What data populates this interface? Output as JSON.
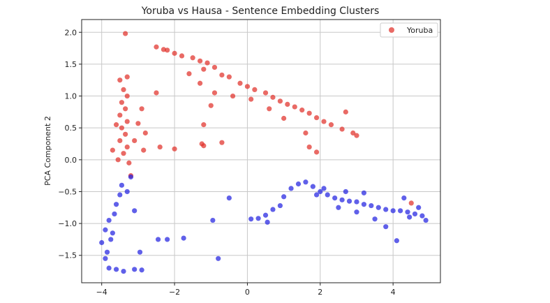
{
  "chart_data": {
    "type": "scatter",
    "title": "Yoruba vs Hausa - Sentence Embedding Clusters",
    "xlabel": "",
    "ylabel": "PCA Component 2",
    "xlim": [
      -4.55,
      5.3
    ],
    "ylim": [
      -1.93,
      2.2
    ],
    "xticks": [
      -4,
      -2,
      0,
      2,
      4
    ],
    "yticks": [
      -1.5,
      -1.0,
      -0.5,
      0.0,
      0.5,
      1.0,
      1.5,
      2.0
    ],
    "grid": true,
    "legend": {
      "placement": "top-right",
      "entries": [
        "Yoruba"
      ]
    },
    "colors": {
      "yoruba": "#e0302a",
      "hausa": "#2222e0"
    },
    "series": [
      {
        "name": "Yoruba",
        "color": "#e0302a",
        "points": [
          [
            -3.35,
            1.98
          ],
          [
            -2.5,
            1.77
          ],
          [
            -2.3,
            1.73
          ],
          [
            -2.2,
            1.72
          ],
          [
            -2.0,
            1.67
          ],
          [
            -1.8,
            1.63
          ],
          [
            -1.5,
            1.6
          ],
          [
            -1.3,
            1.55
          ],
          [
            -1.1,
            1.52
          ],
          [
            -1.2,
            1.42
          ],
          [
            -0.9,
            1.45
          ],
          [
            -0.7,
            1.33
          ],
          [
            -0.5,
            1.3
          ],
          [
            -0.2,
            1.2
          ],
          [
            0.0,
            1.15
          ],
          [
            0.2,
            1.1
          ],
          [
            0.5,
            1.05
          ],
          [
            0.7,
            0.98
          ],
          [
            0.9,
            0.92
          ],
          [
            1.1,
            0.87
          ],
          [
            1.3,
            0.83
          ],
          [
            1.5,
            0.78
          ],
          [
            1.7,
            0.73
          ],
          [
            1.9,
            0.66
          ],
          [
            2.1,
            0.6
          ],
          [
            2.3,
            0.55
          ],
          [
            2.6,
            0.48
          ],
          [
            2.9,
            0.42
          ],
          [
            3.0,
            0.38
          ],
          [
            2.7,
            0.75
          ],
          [
            -1.6,
            1.35
          ],
          [
            -1.3,
            1.2
          ],
          [
            -0.9,
            1.05
          ],
          [
            -0.4,
            1.0
          ],
          [
            0.1,
            0.95
          ],
          [
            0.6,
            0.8
          ],
          [
            1.0,
            0.65
          ],
          [
            1.6,
            0.42
          ],
          [
            1.9,
            0.12
          ],
          [
            1.7,
            0.2
          ],
          [
            -1.2,
            0.55
          ],
          [
            -1.25,
            0.25
          ],
          [
            -1.2,
            0.22
          ],
          [
            -0.7,
            0.27
          ],
          [
            -1.0,
            0.85
          ],
          [
            -2.4,
            0.2
          ],
          [
            -2.0,
            0.17
          ],
          [
            -2.5,
            1.05
          ],
          [
            -2.9,
            0.8
          ],
          [
            -3.0,
            0.57
          ],
          [
            -2.8,
            0.42
          ],
          [
            -3.3,
            1.3
          ],
          [
            -3.5,
            1.25
          ],
          [
            -3.4,
            1.1
          ],
          [
            -3.3,
            1.0
          ],
          [
            -3.45,
            0.9
          ],
          [
            -3.35,
            0.8
          ],
          [
            -3.5,
            0.7
          ],
          [
            -3.3,
            0.6
          ],
          [
            -3.45,
            0.5
          ],
          [
            -3.35,
            0.4
          ],
          [
            -3.5,
            0.3
          ],
          [
            -3.3,
            0.2
          ],
          [
            -3.4,
            0.1
          ],
          [
            -3.55,
            0.0
          ],
          [
            -3.25,
            -0.05
          ],
          [
            -3.7,
            0.15
          ],
          [
            -3.6,
            0.55
          ],
          [
            -3.1,
            0.3
          ],
          [
            -2.85,
            0.15
          ],
          [
            -3.2,
            -0.25
          ],
          [
            4.5,
            -0.68
          ]
        ]
      },
      {
        "name": "",
        "color": "#2222e0",
        "points": [
          [
            -4.0,
            -1.3
          ],
          [
            -3.9,
            -1.1
          ],
          [
            -3.85,
            -1.45
          ],
          [
            -3.75,
            -1.25
          ],
          [
            -3.8,
            -0.95
          ],
          [
            -3.65,
            -0.85
          ],
          [
            -3.7,
            -1.15
          ],
          [
            -3.6,
            -0.7
          ],
          [
            -3.5,
            -0.55
          ],
          [
            -3.45,
            -0.4
          ],
          [
            -3.9,
            -1.55
          ],
          [
            -3.8,
            -1.7
          ],
          [
            -3.6,
            -1.72
          ],
          [
            -3.4,
            -1.75
          ],
          [
            -3.1,
            -1.72
          ],
          [
            -2.9,
            -1.73
          ],
          [
            -3.2,
            -0.27
          ],
          [
            -3.3,
            -0.5
          ],
          [
            -3.1,
            -0.8
          ],
          [
            -2.95,
            -1.45
          ],
          [
            -2.45,
            -1.25
          ],
          [
            -2.2,
            -1.25
          ],
          [
            -1.75,
            -1.23
          ],
          [
            -0.95,
            -0.95
          ],
          [
            -0.8,
            -1.55
          ],
          [
            -0.5,
            -0.6
          ],
          [
            0.1,
            -0.93
          ],
          [
            0.3,
            -0.92
          ],
          [
            0.5,
            -0.87
          ],
          [
            0.55,
            -0.98
          ],
          [
            0.7,
            -0.78
          ],
          [
            0.9,
            -0.72
          ],
          [
            1.0,
            -0.58
          ],
          [
            1.2,
            -0.45
          ],
          [
            1.4,
            -0.38
          ],
          [
            1.6,
            -0.35
          ],
          [
            1.8,
            -0.42
          ],
          [
            2.0,
            -0.5
          ],
          [
            2.2,
            -0.55
          ],
          [
            2.4,
            -0.6
          ],
          [
            2.6,
            -0.63
          ],
          [
            2.8,
            -0.65
          ],
          [
            3.0,
            -0.66
          ],
          [
            3.2,
            -0.7
          ],
          [
            3.4,
            -0.72
          ],
          [
            3.6,
            -0.75
          ],
          [
            3.8,
            -0.78
          ],
          [
            4.0,
            -0.8
          ],
          [
            4.2,
            -0.8
          ],
          [
            4.4,
            -0.82
          ],
          [
            4.6,
            -0.85
          ],
          [
            4.8,
            -0.88
          ],
          [
            4.9,
            -0.95
          ],
          [
            4.7,
            -0.75
          ],
          [
            4.1,
            -1.27
          ],
          [
            3.8,
            -1.05
          ],
          [
            3.5,
            -0.93
          ],
          [
            3.0,
            -0.82
          ],
          [
            2.5,
            -0.75
          ],
          [
            1.9,
            -0.55
          ],
          [
            2.1,
            -0.45
          ],
          [
            2.7,
            -0.5
          ],
          [
            3.2,
            -0.52
          ],
          [
            4.3,
            -0.6
          ],
          [
            4.45,
            -0.9
          ]
        ]
      }
    ]
  }
}
